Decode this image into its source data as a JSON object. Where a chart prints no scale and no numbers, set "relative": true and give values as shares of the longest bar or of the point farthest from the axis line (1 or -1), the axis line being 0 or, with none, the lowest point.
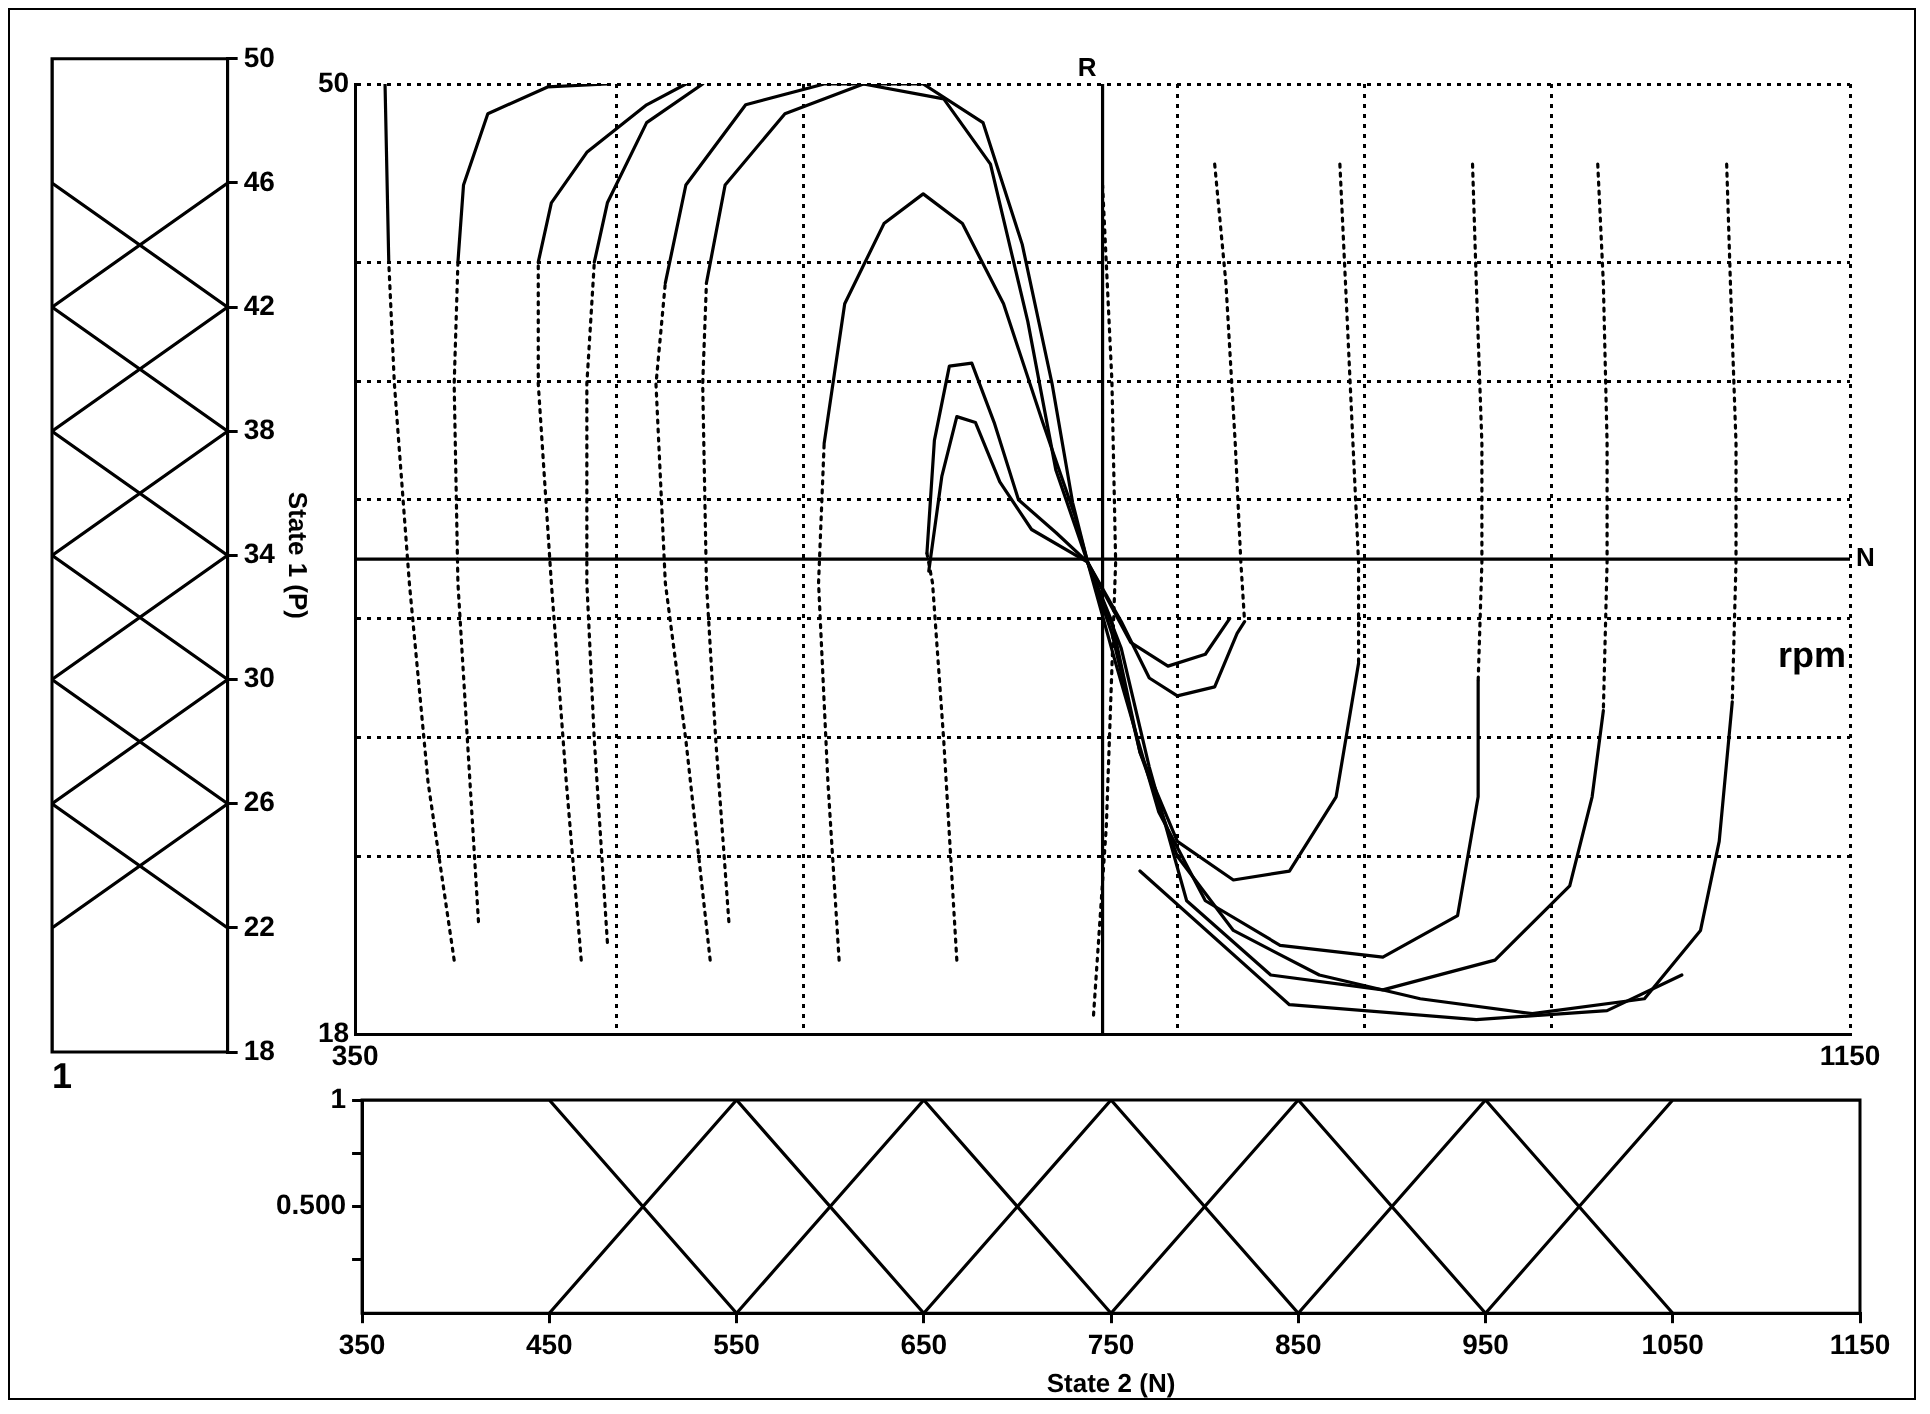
{
  "chart_data": [
    {
      "type": "line",
      "orientation": "horizontal",
      "relative": true,
      "ylabel": "State 1 (P)",
      "annotations": [
        "1"
      ],
      "ylim": [
        18,
        50
      ],
      "yticks": [
        18,
        22,
        26,
        30,
        34,
        38,
        42,
        46,
        50
      ],
      "grid": false,
      "legend": false,
      "series": [
        {
          "color": "#000000",
          "x": [
            18,
            22,
            26
          ],
          "values": [
            -1,
            -1,
            0
          ]
        },
        {
          "color": "#000000",
          "x": [
            22,
            26,
            30
          ],
          "values": [
            0,
            -1,
            0
          ]
        },
        {
          "color": "#000000",
          "x": [
            26,
            30,
            34
          ],
          "values": [
            0,
            -1,
            0
          ]
        },
        {
          "color": "#000000",
          "x": [
            30,
            34,
            38
          ],
          "values": [
            0,
            -1,
            0
          ]
        },
        {
          "color": "#000000",
          "x": [
            34,
            38,
            42
          ],
          "values": [
            0,
            -1,
            0
          ]
        },
        {
          "color": "#000000",
          "x": [
            38,
            42,
            46
          ],
          "values": [
            0,
            -1,
            0
          ]
        },
        {
          "color": "#000000",
          "x": [
            42,
            46,
            50
          ],
          "values": [
            0,
            -1,
            -1
          ]
        }
      ]
    },
    {
      "type": "line",
      "xlim": [
        350,
        1150
      ],
      "xticks": [
        350,
        {
          "value": 490,
          "label": null
        },
        {
          "value": 590,
          "label": null
        },
        {
          "value": 790,
          "label": null
        },
        {
          "value": 890,
          "label": null
        },
        {
          "value": 990,
          "label": null
        },
        1150
      ],
      "ylim": [
        18,
        50
      ],
      "yticks": [
        18,
        {
          "value": 24,
          "label": null
        },
        {
          "value": 28,
          "label": null
        },
        {
          "value": 32,
          "label": null
        },
        {
          "value": 36,
          "label": null
        },
        {
          "value": 40,
          "label": null
        },
        {
          "value": 44,
          "label": null
        },
        50
      ],
      "grid": true,
      "legend": false,
      "ref_lines": [
        {
          "axis": "y",
          "value": 34,
          "label": "N"
        },
        {
          "axis": "x",
          "value": 750,
          "label": "R"
        }
      ],
      "annotations": [
        "rpm"
      ],
      "series": [
        {
          "color": "#000000",
          "line_style": "dotted",
          "x": [
            403,
            389,
            379,
            371,
            368
          ],
          "values": [
            20.5,
            26.5,
            33.2,
            39.9,
            44.0
          ]
        },
        {
          "color": "#000000",
          "line_style": "dotted",
          "x": [
            416,
            410,
            405,
            403,
            405
          ],
          "values": [
            21.8,
            28.0,
            33.2,
            39.9,
            44.0
          ]
        },
        {
          "color": "#000000",
          "line_style": "dotted",
          "x": [
            471,
            463,
            455,
            448,
            448
          ],
          "values": [
            20.5,
            26.5,
            33.2,
            39.9,
            44.0
          ]
        },
        {
          "color": "#000000",
          "line_style": "dotted",
          "x": [
            485,
            478,
            474,
            474,
            478
          ],
          "values": [
            21.1,
            27.9,
            33.2,
            39.9,
            44.0
          ]
        },
        {
          "color": "#000000",
          "line_style": "dotted",
          "x": [
            540,
            527,
            516,
            511,
            516
          ],
          "values": [
            20.5,
            27.9,
            33.2,
            39.9,
            43.3
          ]
        },
        {
          "color": "#000000",
          "line_style": "dotted",
          "x": [
            550,
            543,
            538,
            536,
            538
          ],
          "values": [
            21.8,
            27.9,
            33.2,
            39.9,
            43.3
          ]
        },
        {
          "color": "#000000",
          "line_style": "dotted",
          "x": [
            609,
            603,
            598,
            601
          ],
          "values": [
            20.5,
            26.5,
            33.2,
            37.9
          ]
        },
        {
          "color": "#000000",
          "line_style": "dotted",
          "x": [
            672,
            665,
            659,
            656
          ],
          "values": [
            20.5,
            27.9,
            33.2,
            34.2
          ]
        },
        {
          "color": "#000000",
          "line_style": "dotted",
          "x": [
            750,
            755,
            757,
            752,
            745
          ],
          "values": [
            46.6,
            40,
            33.9,
            25,
            18.5
          ]
        },
        {
          "color": "#000000",
          "line_style": "dotted",
          "x": [
            810,
            816,
            821,
            824,
            826
          ],
          "values": [
            47.3,
            43.3,
            37.9,
            33.9,
            31.9
          ]
        },
        {
          "color": "#000000",
          "line_style": "dotted",
          "x": [
            877,
            880,
            884,
            887,
            887
          ],
          "values": [
            47.3,
            43.3,
            37.9,
            33.9,
            30.5
          ]
        },
        {
          "color": "#000000",
          "line_style": "dotted",
          "x": [
            948,
            950,
            953,
            953,
            951
          ],
          "values": [
            47.3,
            43.3,
            37.9,
            33.9,
            29.9
          ]
        },
        {
          "color": "#000000",
          "line_style": "dotted",
          "x": [
            1015,
            1018,
            1020,
            1020,
            1018
          ],
          "values": [
            47.3,
            43.3,
            37.9,
            33.9,
            28.9
          ]
        },
        {
          "color": "#000000",
          "line_style": "dotted",
          "x": [
            1084,
            1086,
            1089,
            1089,
            1087
          ],
          "values": [
            47.3,
            43.3,
            37.9,
            33.9,
            29.2
          ]
        },
        {
          "color": "#000000",
          "line_style": "solid",
          "x": [
            368,
            366
          ],
          "values": [
            44.0,
            50
          ]
        },
        {
          "color": "#000000",
          "line_style": "solid",
          "x": [
            405,
            408,
            421,
            453,
            485
          ],
          "values": [
            44.0,
            46.6,
            49.0,
            49.9,
            50
          ]
        },
        {
          "color": "#000000",
          "line_style": "solid",
          "x": [
            448,
            455,
            474,
            506,
            527
          ],
          "values": [
            44.0,
            46.0,
            47.7,
            49.3,
            50
          ]
        },
        {
          "color": "#000000",
          "line_style": "solid",
          "x": [
            478,
            485,
            506,
            536
          ],
          "values": [
            44.0,
            46.0,
            48.7,
            50
          ]
        },
        {
          "color": "#000000",
          "line_style": "solid",
          "x": [
            516,
            527,
            559,
            601,
            654,
            686,
            707,
            723,
            734,
            742,
            755,
            770,
            790,
            820,
            866,
            920,
            980,
            1040,
            1070,
            1080,
            1087
          ],
          "values": [
            43.3,
            46.6,
            49.3,
            50,
            50,
            48.7,
            44.6,
            39.9,
            35.9,
            33.9,
            31.9,
            27.5,
            24.0,
            21.5,
            20.0,
            19.2,
            18.7,
            19.2,
            21.5,
            24.5,
            29.2
          ]
        },
        {
          "color": "#000000",
          "line_style": "solid",
          "x": [
            538,
            548,
            580,
            622,
            665,
            690,
            710,
            725,
            742,
            757,
            780,
            805,
            845,
            900,
            940,
            951,
            951
          ],
          "values": [
            43.3,
            46.6,
            49.0,
            50,
            49.5,
            47.3,
            42,
            37,
            33.9,
            30.5,
            25.5,
            22.5,
            21.0,
            20.6,
            22.0,
            26,
            29.9
          ]
        },
        {
          "color": "#000000",
          "line_style": "solid",
          "x": [
            601,
            612,
            633,
            654,
            675,
            697,
            718,
            735,
            742,
            755,
            770,
            790,
            820,
            850,
            875,
            887
          ],
          "values": [
            37.9,
            42.6,
            45.3,
            46.3,
            45.3,
            42.6,
            38.6,
            35.5,
            33.9,
            31.5,
            27.5,
            24.5,
            23.2,
            23.5,
            26,
            30.5
          ]
        },
        {
          "color": "#000000",
          "line_style": "solid",
          "x": [
            656,
            660,
            668,
            680,
            692,
            705,
            725,
            742,
            760,
            775,
            790,
            810,
            822,
            826
          ],
          "values": [
            34.2,
            38,
            40.5,
            40.6,
            38.6,
            36.0,
            34.9,
            33.9,
            31.9,
            30.0,
            29.4,
            29.7,
            31.5,
            31.9
          ]
        },
        {
          "color": "#000000",
          "line_style": "solid",
          "x": [
            657,
            664,
            672,
            682,
            695,
            712,
            742,
            765,
            785,
            805,
            818
          ],
          "values": [
            33.6,
            36.8,
            38.8,
            38.6,
            36.6,
            35,
            33.9,
            31.2,
            30.4,
            30.8,
            32
          ]
        },
        {
          "color": "#000000",
          "line_style": "solid",
          "x": [
            742,
            760,
            775,
            795,
            840,
            900,
            960,
            1000,
            1012,
            1018
          ],
          "values": [
            33.9,
            31,
            27,
            22.5,
            20.0,
            19.5,
            20.5,
            23,
            26,
            28.9
          ]
        },
        {
          "color": "#000000",
          "line_style": "solid",
          "x": [
            770,
            850,
            950,
            1020,
            1060
          ],
          "values": [
            23.5,
            19.0,
            18.5,
            18.8,
            20.0
          ]
        }
      ]
    },
    {
      "type": "line",
      "xlabel": "State 2 (N)",
      "xlim": [
        350,
        1150
      ],
      "xticks": [
        350,
        450,
        550,
        650,
        750,
        850,
        950,
        1050,
        1150
      ],
      "ylim": [
        0,
        1
      ],
      "yticks": [
        {
          "value": 0.25,
          "label": null
        },
        {
          "value": 0.5,
          "label": "0.500"
        },
        {
          "value": 0.75,
          "label": null
        },
        1
      ],
      "grid": false,
      "legend": false,
      "series": [
        {
          "color": "#000000",
          "x": [
            350,
            450,
            550
          ],
          "values": [
            1,
            1,
            0
          ]
        },
        {
          "color": "#000000",
          "x": [
            450,
            550,
            650
          ],
          "values": [
            0,
            1,
            0
          ]
        },
        {
          "color": "#000000",
          "x": [
            550,
            650,
            750
          ],
          "values": [
            0,
            1,
            0
          ]
        },
        {
          "color": "#000000",
          "x": [
            650,
            750,
            850
          ],
          "values": [
            0,
            1,
            0
          ]
        },
        {
          "color": "#000000",
          "x": [
            750,
            850,
            950
          ],
          "values": [
            0,
            1,
            0
          ]
        },
        {
          "color": "#000000",
          "x": [
            850,
            950,
            1050
          ],
          "values": [
            0,
            1,
            0
          ]
        },
        {
          "color": "#000000",
          "x": [
            950,
            1050,
            1150
          ],
          "values": [
            0,
            1,
            1
          ]
        }
      ]
    }
  ]
}
